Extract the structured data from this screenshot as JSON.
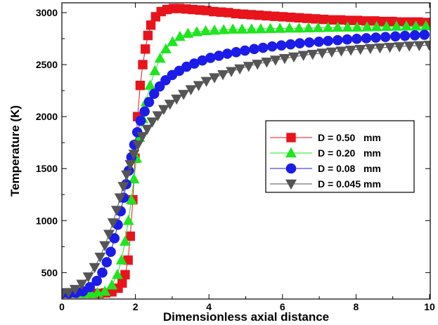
{
  "chart_data": {
    "type": "line",
    "title": "",
    "xlabel": "Dimensionless axial distance",
    "ylabel": "Temperature (K)",
    "xlim": [
      0,
      10
    ],
    "ylim": [
      300,
      3050
    ],
    "xticks": [
      "0",
      "2",
      "4",
      "6",
      "8",
      "10"
    ],
    "yticks": [
      "500",
      "1000",
      "1500",
      "2000",
      "2500",
      "3000"
    ],
    "legend_position": "center-right",
    "grid": false,
    "series": [
      {
        "name": "D = 0.50   mm",
        "color": "#e8141c",
        "marker": "square",
        "x": [
          0.0,
          0.17,
          0.34,
          0.51,
          0.68,
          0.85,
          1.02,
          1.19,
          1.36,
          1.53,
          1.64,
          1.72,
          1.8,
          1.86,
          1.93,
          1.99,
          2.06,
          2.13,
          2.2,
          2.27,
          2.34,
          2.42,
          2.55,
          2.7,
          2.86,
          3.03,
          3.2,
          3.38,
          3.56,
          3.75,
          3.94,
          4.13,
          4.33,
          4.53,
          4.73,
          4.94,
          5.15,
          5.36,
          5.57,
          5.79,
          6.01,
          6.23,
          6.45,
          6.67,
          6.9,
          7.12,
          7.35,
          7.58,
          7.81,
          8.04,
          8.27,
          8.51,
          8.74,
          8.98,
          9.21,
          9.45,
          9.69,
          9.93
        ],
        "y": [
          300,
          300,
          300,
          300,
          300,
          300,
          300,
          305,
          315,
          350,
          400,
          480,
          620,
          850,
          1200,
          1600,
          2000,
          2300,
          2500,
          2650,
          2780,
          2880,
          2960,
          3010,
          3030,
          3040,
          3040,
          3035,
          3030,
          3025,
          3020,
          3010,
          3005,
          3000,
          2990,
          2985,
          2980,
          2975,
          2970,
          2965,
          2960,
          2955,
          2950,
          2945,
          2940,
          2935,
          2930,
          2930,
          2925,
          2925,
          2920,
          2920,
          2915,
          2915,
          2910,
          2910,
          2910,
          2905
        ]
      },
      {
        "name": "D = 0.20   mm",
        "color": "#1ee61e",
        "marker": "triangle-up",
        "x": [
          0.0,
          0.19,
          0.39,
          0.58,
          0.78,
          0.97,
          1.17,
          1.36,
          1.51,
          1.62,
          1.72,
          1.81,
          1.89,
          1.96,
          2.03,
          2.11,
          2.2,
          2.29,
          2.4,
          2.53,
          2.67,
          2.83,
          3.01,
          3.21,
          3.43,
          3.67,
          3.91,
          4.15,
          4.4,
          4.65,
          4.9,
          5.16,
          5.41,
          5.67,
          5.93,
          6.19,
          6.45,
          6.71,
          6.97,
          7.24,
          7.5,
          7.77,
          8.03,
          8.3,
          8.56,
          8.83,
          9.1,
          9.37,
          9.63,
          9.9
        ],
        "y": [
          300,
          300,
          300,
          300,
          300,
          305,
          320,
          380,
          480,
          620,
          800,
          1000,
          1200,
          1400,
          1600,
          1800,
          1980,
          2140,
          2300,
          2440,
          2560,
          2650,
          2720,
          2770,
          2800,
          2815,
          2825,
          2830,
          2835,
          2840,
          2840,
          2842,
          2844,
          2846,
          2848,
          2850,
          2850,
          2852,
          2854,
          2856,
          2858,
          2860,
          2860,
          2862,
          2864,
          2866,
          2868,
          2870,
          2870,
          2872
        ]
      },
      {
        "name": "D = 0.08   mm",
        "color": "#1c1ce8",
        "marker": "circle",
        "x": [
          0.0,
          0.19,
          0.38,
          0.57,
          0.76,
          0.95,
          1.1,
          1.22,
          1.33,
          1.43,
          1.52,
          1.6,
          1.68,
          1.75,
          1.82,
          1.89,
          1.97,
          2.05,
          2.14,
          2.25,
          2.37,
          2.51,
          2.66,
          2.82,
          3.0,
          3.19,
          3.39,
          3.6,
          3.82,
          4.04,
          4.27,
          4.5,
          4.74,
          4.98,
          5.23,
          5.47,
          5.72,
          5.97,
          6.22,
          6.47,
          6.73,
          6.99,
          7.24,
          7.5,
          7.76,
          8.02,
          8.28,
          8.54,
          8.8,
          9.07,
          9.33,
          9.6,
          9.86
        ],
        "y": [
          300,
          300,
          305,
          320,
          360,
          420,
          500,
          600,
          700,
          830,
          960,
          1090,
          1220,
          1350,
          1480,
          1610,
          1730,
          1850,
          1960,
          2050,
          2140,
          2220,
          2290,
          2350,
          2400,
          2440,
          2480,
          2510,
          2540,
          2565,
          2585,
          2605,
          2620,
          2635,
          2650,
          2662,
          2675,
          2685,
          2695,
          2705,
          2713,
          2720,
          2728,
          2735,
          2742,
          2748,
          2754,
          2760,
          2766,
          2772,
          2777,
          2782,
          2787
        ]
      },
      {
        "name": "D = 0.045 mm",
        "color": "#555555",
        "marker": "triangle-down",
        "x": [
          0.0,
          0.18,
          0.36,
          0.54,
          0.72,
          0.89,
          1.04,
          1.17,
          1.28,
          1.39,
          1.49,
          1.58,
          1.67,
          1.76,
          1.86,
          1.96,
          2.07,
          2.19,
          2.32,
          2.46,
          2.61,
          2.77,
          2.94,
          3.12,
          3.31,
          3.51,
          3.72,
          3.93,
          4.15,
          4.38,
          4.61,
          4.84,
          5.08,
          5.32,
          5.57,
          5.81,
          6.06,
          6.31,
          6.57,
          6.82,
          7.08,
          7.34,
          7.6,
          7.86,
          8.12,
          8.39,
          8.65,
          8.92,
          9.18,
          9.45,
          9.72,
          9.99
        ],
        "y": [
          300,
          310,
          340,
          390,
          460,
          550,
          650,
          760,
          870,
          980,
          1100,
          1220,
          1330,
          1440,
          1540,
          1640,
          1730,
          1810,
          1880,
          1950,
          2010,
          2070,
          2120,
          2170,
          2215,
          2260,
          2300,
          2340,
          2375,
          2405,
          2435,
          2460,
          2485,
          2505,
          2525,
          2545,
          2560,
          2575,
          2590,
          2600,
          2612,
          2622,
          2632,
          2640,
          2648,
          2656,
          2662,
          2668,
          2674,
          2680,
          2684,
          2688
        ]
      }
    ]
  }
}
